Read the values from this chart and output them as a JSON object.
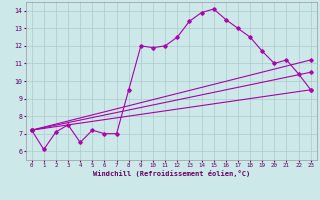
{
  "xlabel": "Windchill (Refroidissement éolien,°C)",
  "bg_color": "#cce8e8",
  "line_color": "#aa00aa",
  "grid_color": "#aacccc",
  "xlim": [
    -0.5,
    23.5
  ],
  "ylim": [
    5.5,
    14.5
  ],
  "xticks": [
    0,
    1,
    2,
    3,
    4,
    5,
    6,
    7,
    8,
    9,
    10,
    11,
    12,
    13,
    14,
    15,
    16,
    17,
    18,
    19,
    20,
    21,
    22,
    23
  ],
  "yticks": [
    6,
    7,
    8,
    9,
    10,
    11,
    12,
    13,
    14
  ],
  "line1_x": [
    0,
    1,
    2,
    3,
    4,
    5,
    6,
    7,
    8,
    9,
    10,
    11,
    12,
    13,
    14,
    15,
    16,
    17,
    18,
    19,
    20,
    21,
    22,
    23
  ],
  "line1_y": [
    7.2,
    6.1,
    7.1,
    7.5,
    6.5,
    7.2,
    7.0,
    7.0,
    9.5,
    12.0,
    11.9,
    12.0,
    12.5,
    13.4,
    13.9,
    14.1,
    13.5,
    13.0,
    12.5,
    11.7,
    11.0,
    11.2,
    10.4,
    9.5
  ],
  "line2_x": [
    0,
    23
  ],
  "line2_y": [
    7.2,
    9.5
  ],
  "line3_x": [
    0,
    23
  ],
  "line3_y": [
    7.2,
    10.5
  ],
  "line4_x": [
    0,
    23
  ],
  "line4_y": [
    7.2,
    11.2
  ]
}
